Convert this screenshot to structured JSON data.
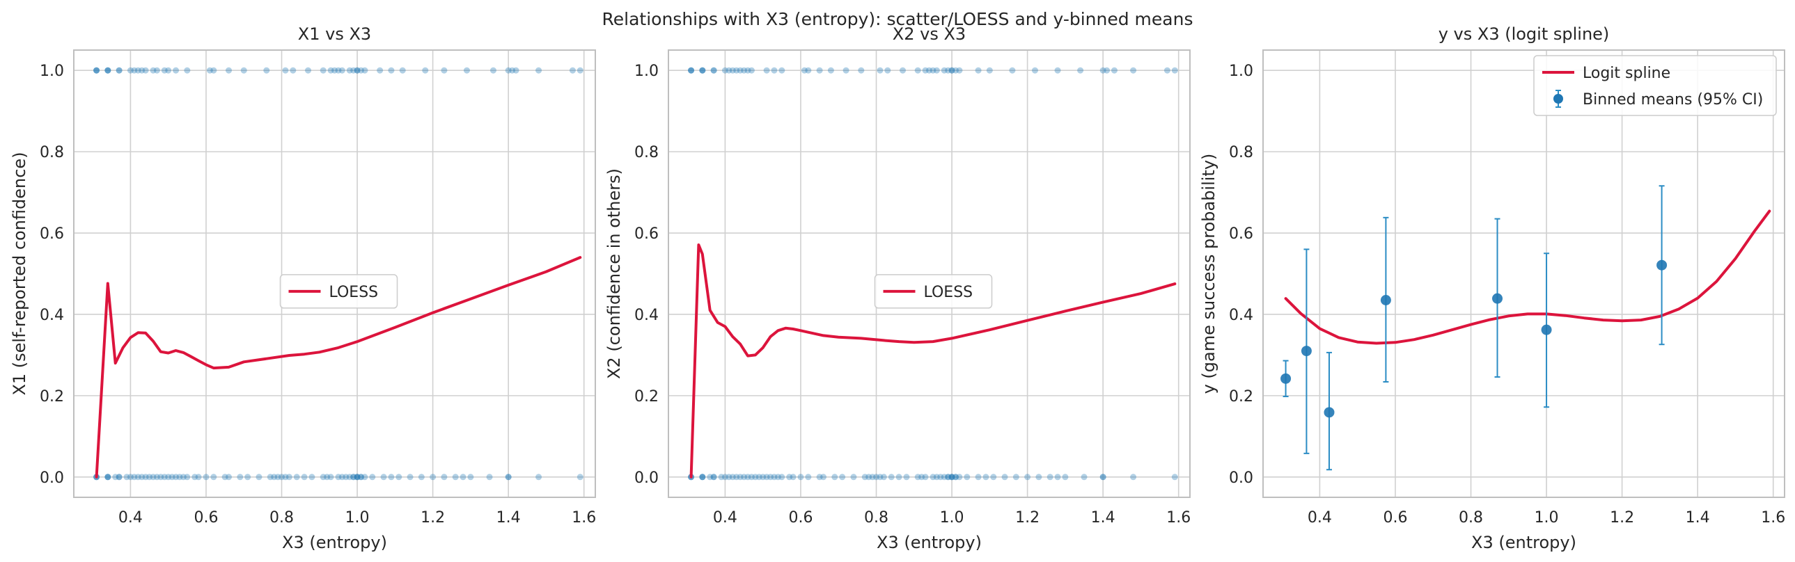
{
  "title": "Relationships with X3 (entropy): scatter/LOESS and y-binned means",
  "colors": {
    "scatter": "#1f77b4",
    "line": "#dc143c",
    "errorbar": "#2b8cc4",
    "grid": "#d0d0d0",
    "frame": "#bfbfbf"
  },
  "chart_data": [
    {
      "type": "scatter",
      "title": "X1 vs X3",
      "xlabel": "X3 (entropy)",
      "ylabel": "X1 (self-reported confidence)",
      "xlim": [
        0.25,
        1.63
      ],
      "ylim": [
        -0.05,
        1.05
      ],
      "xticks": [
        0.4,
        0.6,
        0.8,
        1.0,
        1.2,
        1.4,
        1.6
      ],
      "yticks": [
        0.0,
        0.2,
        0.4,
        0.6,
        0.8,
        1.0
      ],
      "grid": true,
      "legend_position": "center",
      "series": [
        {
          "name": "",
          "kind": "scatter",
          "y_ones_x": [
            0.31,
            0.31,
            0.31,
            0.34,
            0.34,
            0.34,
            0.37,
            0.37,
            0.4,
            0.41,
            0.42,
            0.43,
            0.44,
            0.46,
            0.47,
            0.49,
            0.5,
            0.52,
            0.55,
            0.61,
            0.62,
            0.66,
            0.7,
            0.76,
            0.81,
            0.83,
            0.87,
            0.91,
            0.93,
            0.94,
            0.95,
            0.96,
            0.98,
            0.99,
            1.0,
            1.0,
            1.01,
            1.02,
            1.06,
            1.09,
            1.12,
            1.18,
            1.23,
            1.29,
            1.36,
            1.4,
            1.41,
            1.42,
            1.48,
            1.57,
            1.59
          ],
          "y_zeros_x": [
            0.31,
            0.31,
            0.31,
            0.34,
            0.34,
            0.34,
            0.36,
            0.37,
            0.37,
            0.39,
            0.4,
            0.41,
            0.42,
            0.43,
            0.44,
            0.45,
            0.46,
            0.47,
            0.48,
            0.49,
            0.5,
            0.51,
            0.52,
            0.53,
            0.54,
            0.55,
            0.57,
            0.58,
            0.6,
            0.62,
            0.65,
            0.66,
            0.69,
            0.71,
            0.74,
            0.77,
            0.78,
            0.79,
            0.8,
            0.81,
            0.82,
            0.84,
            0.86,
            0.88,
            0.91,
            0.92,
            0.93,
            0.95,
            0.96,
            0.97,
            0.98,
            0.99,
            0.99,
            1.0,
            1.0,
            1.0,
            1.01,
            1.01,
            1.02,
            1.04,
            1.07,
            1.09,
            1.11,
            1.14,
            1.17,
            1.2,
            1.23,
            1.26,
            1.28,
            1.3,
            1.35,
            1.4,
            1.4,
            1.48,
            1.59
          ]
        },
        {
          "name": "LOESS",
          "kind": "line",
          "x": [
            0.31,
            0.34,
            0.36,
            0.38,
            0.4,
            0.42,
            0.44,
            0.46,
            0.48,
            0.5,
            0.52,
            0.54,
            0.56,
            0.58,
            0.6,
            0.62,
            0.66,
            0.7,
            0.76,
            0.82,
            0.86,
            0.9,
            0.95,
            1.0,
            1.1,
            1.2,
            1.3,
            1.4,
            1.5,
            1.59
          ],
          "y": [
            0.0,
            0.476,
            0.28,
            0.318,
            0.343,
            0.355,
            0.354,
            0.334,
            0.308,
            0.305,
            0.311,
            0.306,
            0.296,
            0.286,
            0.276,
            0.268,
            0.27,
            0.283,
            0.291,
            0.299,
            0.302,
            0.307,
            0.318,
            0.333,
            0.368,
            0.404,
            0.438,
            0.472,
            0.505,
            0.54
          ]
        }
      ]
    },
    {
      "type": "scatter",
      "title": "X2 vs X3",
      "xlabel": "X3 (entropy)",
      "ylabel": "X2 (confidence in others)",
      "xlim": [
        0.25,
        1.63
      ],
      "ylim": [
        -0.05,
        1.05
      ],
      "xticks": [
        0.4,
        0.6,
        0.8,
        1.0,
        1.2,
        1.4,
        1.6
      ],
      "yticks": [
        0.0,
        0.2,
        0.4,
        0.6,
        0.8,
        1.0
      ],
      "grid": true,
      "legend_position": "center",
      "series": [
        {
          "name": "",
          "kind": "scatter",
          "y_ones_x": [
            0.31,
            0.31,
            0.31,
            0.34,
            0.34,
            0.34,
            0.37,
            0.37,
            0.4,
            0.41,
            0.42,
            0.43,
            0.44,
            0.45,
            0.46,
            0.47,
            0.51,
            0.53,
            0.55,
            0.61,
            0.62,
            0.65,
            0.68,
            0.72,
            0.76,
            0.81,
            0.83,
            0.87,
            0.91,
            0.93,
            0.94,
            0.95,
            0.96,
            0.98,
            0.99,
            1.0,
            1.0,
            1.01,
            1.02,
            1.07,
            1.1,
            1.16,
            1.22,
            1.28,
            1.34,
            1.4,
            1.41,
            1.43,
            1.48,
            1.57,
            1.59
          ],
          "y_zeros_x": [
            0.31,
            0.31,
            0.31,
            0.34,
            0.34,
            0.34,
            0.36,
            0.37,
            0.37,
            0.39,
            0.4,
            0.41,
            0.42,
            0.43,
            0.44,
            0.45,
            0.46,
            0.47,
            0.48,
            0.49,
            0.5,
            0.51,
            0.52,
            0.53,
            0.54,
            0.55,
            0.57,
            0.58,
            0.6,
            0.62,
            0.65,
            0.66,
            0.69,
            0.71,
            0.74,
            0.77,
            0.78,
            0.79,
            0.8,
            0.81,
            0.82,
            0.84,
            0.86,
            0.88,
            0.91,
            0.92,
            0.93,
            0.95,
            0.96,
            0.97,
            0.98,
            0.99,
            0.99,
            1.0,
            1.0,
            1.0,
            1.01,
            1.01,
            1.02,
            1.04,
            1.07,
            1.09,
            1.11,
            1.14,
            1.17,
            1.2,
            1.23,
            1.26,
            1.28,
            1.3,
            1.35,
            1.4,
            1.4,
            1.48,
            1.59
          ]
        },
        {
          "name": "LOESS",
          "kind": "line",
          "x": [
            0.31,
            0.33,
            0.34,
            0.36,
            0.38,
            0.4,
            0.42,
            0.44,
            0.46,
            0.48,
            0.5,
            0.52,
            0.54,
            0.56,
            0.58,
            0.6,
            0.62,
            0.66,
            0.7,
            0.76,
            0.82,
            0.86,
            0.9,
            0.95,
            1.0,
            1.1,
            1.2,
            1.3,
            1.4,
            1.5,
            1.59
          ],
          "y": [
            0.0,
            0.571,
            0.548,
            0.41,
            0.38,
            0.37,
            0.345,
            0.327,
            0.298,
            0.3,
            0.318,
            0.345,
            0.36,
            0.366,
            0.364,
            0.36,
            0.356,
            0.348,
            0.344,
            0.341,
            0.336,
            0.333,
            0.331,
            0.333,
            0.341,
            0.362,
            0.385,
            0.408,
            0.43,
            0.451,
            0.475
          ]
        }
      ]
    },
    {
      "type": "line",
      "title": "y vs X3 (logit spline)",
      "xlabel": "X3 (entropy)",
      "ylabel": "y (game success probability)",
      "xlim": [
        0.25,
        1.63
      ],
      "ylim": [
        -0.05,
        1.05
      ],
      "xticks": [
        0.4,
        0.6,
        0.8,
        1.0,
        1.2,
        1.4,
        1.6
      ],
      "yticks": [
        0.0,
        0.2,
        0.4,
        0.6,
        0.8,
        1.0
      ],
      "grid": true,
      "legend_position": "top-right",
      "series": [
        {
          "name": "Logit spline",
          "kind": "line",
          "x": [
            0.31,
            0.35,
            0.4,
            0.45,
            0.5,
            0.55,
            0.6,
            0.65,
            0.7,
            0.75,
            0.8,
            0.85,
            0.9,
            0.95,
            1.0,
            1.05,
            1.1,
            1.15,
            1.2,
            1.25,
            1.3,
            1.35,
            1.4,
            1.45,
            1.5,
            1.55,
            1.59
          ],
          "y": [
            0.439,
            0.402,
            0.365,
            0.343,
            0.332,
            0.329,
            0.331,
            0.338,
            0.349,
            0.362,
            0.375,
            0.387,
            0.396,
            0.401,
            0.401,
            0.397,
            0.391,
            0.386,
            0.384,
            0.386,
            0.395,
            0.413,
            0.44,
            0.481,
            0.537,
            0.604,
            0.654
          ]
        },
        {
          "name": "Binned means (95% CI)",
          "kind": "errorbar",
          "x": [
            0.31,
            0.365,
            0.425,
            0.575,
            0.87,
            1.0,
            1.305
          ],
          "y": [
            0.242,
            0.31,
            0.159,
            0.435,
            0.439,
            0.362,
            0.521
          ],
          "lower": [
            0.198,
            0.058,
            0.018,
            0.234,
            0.246,
            0.172,
            0.326
          ],
          "upper": [
            0.286,
            0.56,
            0.306,
            0.638,
            0.635,
            0.55,
            0.716
          ]
        }
      ]
    }
  ]
}
